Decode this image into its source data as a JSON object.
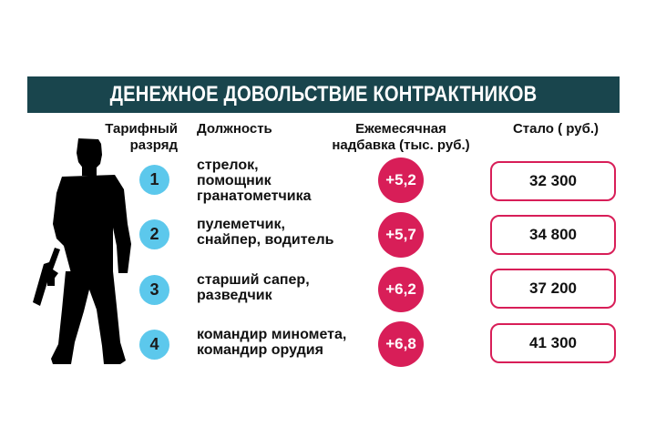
{
  "title": "ДЕНЕЖНОЕ ДОВОЛЬСТВИЕ КОНТРАКТНИКОВ",
  "headers": {
    "grade": [
      "Тарифный",
      "разряд"
    ],
    "position": "Должность",
    "bonus": [
      "Ежемесячная",
      "надбавка (тыс. руб.)"
    ],
    "total": "Стало ( руб.)"
  },
  "rows": [
    {
      "grade": "1",
      "position": [
        "стрелок,",
        "помощник",
        "гранатометчика"
      ],
      "bonus": "+5,2",
      "total": "32 300"
    },
    {
      "grade": "2",
      "position": [
        "пулеметчик,",
        "снайпер, водитель"
      ],
      "bonus": "+5,7",
      "total": "34 800"
    },
    {
      "grade": "3",
      "position": [
        "старший сапер,",
        "разведчик"
      ],
      "bonus": "+6,2",
      "total": "37 200"
    },
    {
      "grade": "4",
      "position": [
        "командир миномета,",
        "командир орудия"
      ],
      "bonus": "+6,8",
      "total": "41 300"
    }
  ],
  "colors": {
    "banner": "#19454d",
    "grade_circle": "#5cc8ec",
    "bonus_circle": "#d81e58",
    "total_border": "#d81e58"
  },
  "icons": {
    "figure": "soldier-silhouette"
  }
}
